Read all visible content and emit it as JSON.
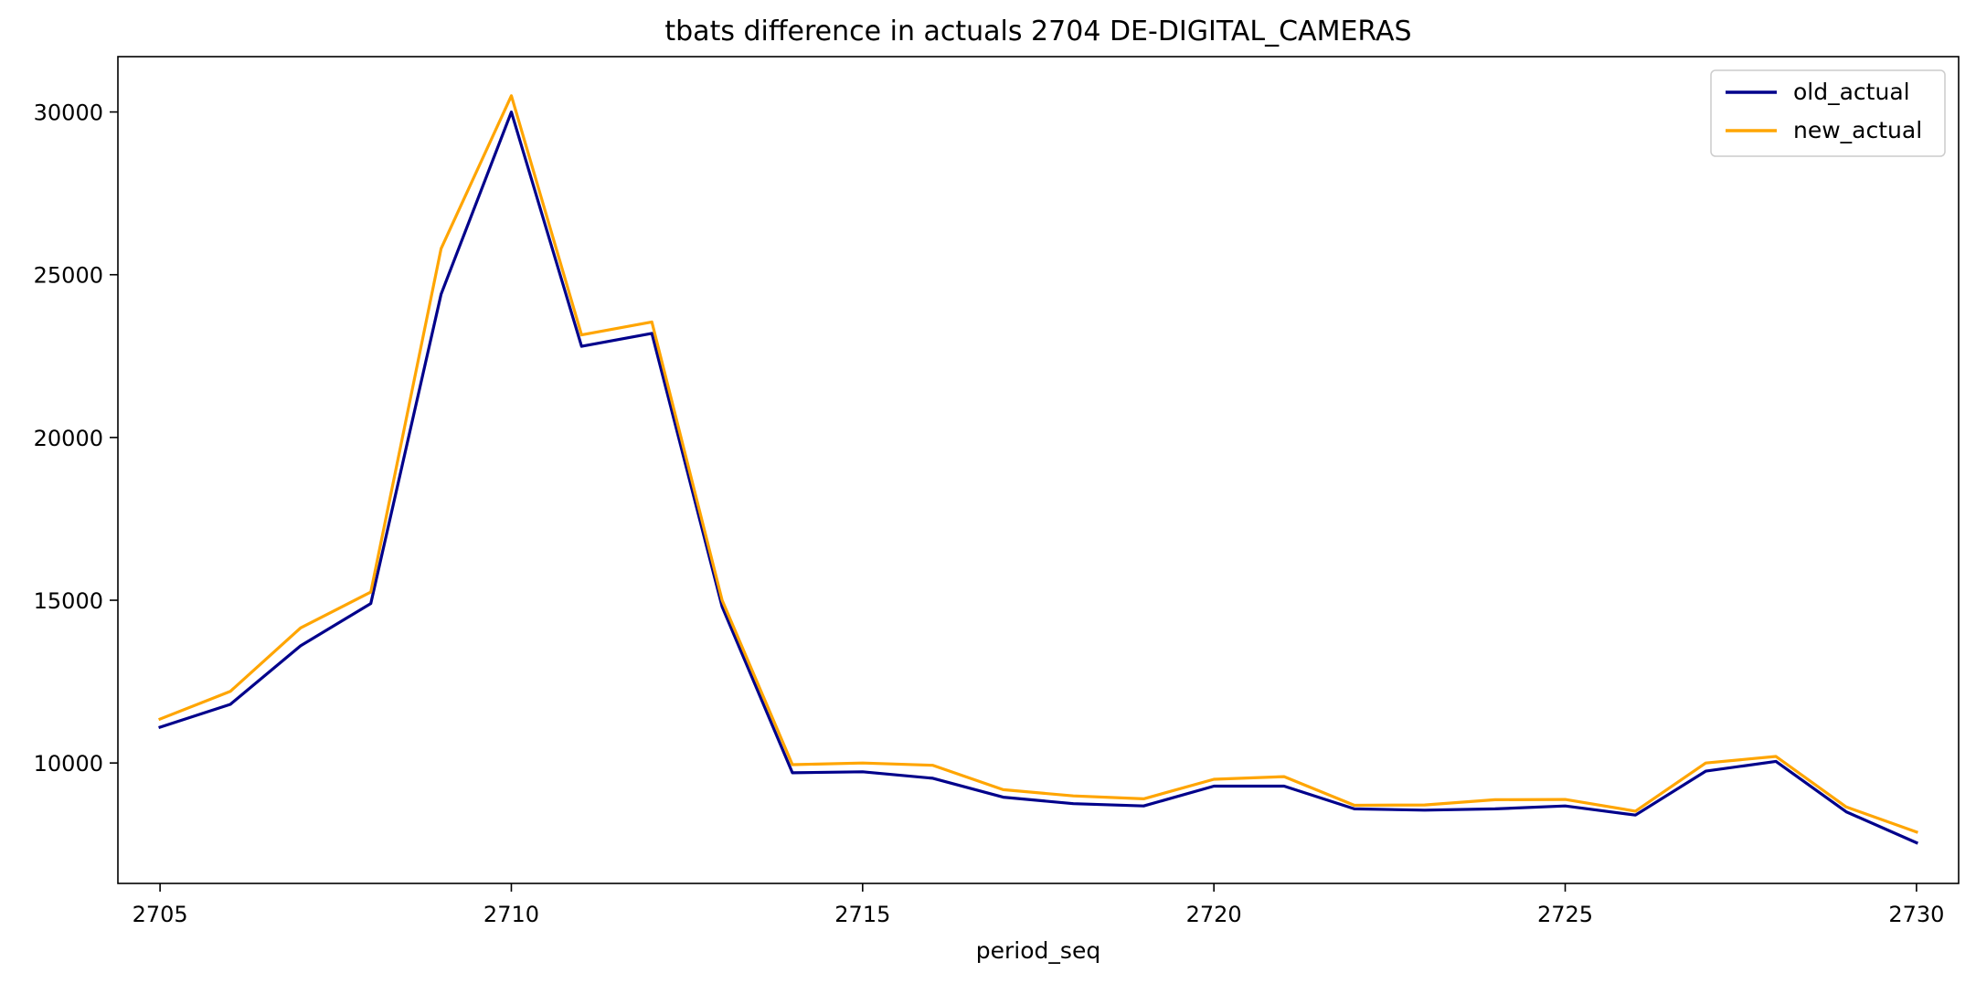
{
  "chart_data": {
    "type": "line",
    "title": "tbats difference in actuals 2704 DE-DIGITAL_CAMERAS",
    "xlabel": "period_seq",
    "ylabel": "",
    "grid": false,
    "legend_position": "top-right",
    "xlim": [
      2704.4,
      2730.6
    ],
    "ylim": [
      6300,
      31700
    ],
    "xticks": [
      2705,
      2710,
      2715,
      2720,
      2725,
      2730
    ],
    "yticks": [
      10000,
      15000,
      20000,
      25000,
      30000
    ],
    "x": [
      2705,
      2706,
      2707,
      2708,
      2709,
      2710,
      2711,
      2712,
      2713,
      2714,
      2715,
      2716,
      2717,
      2718,
      2719,
      2720,
      2721,
      2722,
      2723,
      2724,
      2725,
      2726,
      2727,
      2728,
      2729,
      2730
    ],
    "series": [
      {
        "name": "old_actual",
        "color": "#00008b",
        "values": [
          11100,
          11800,
          13600,
          14900,
          24400,
          30000,
          22800,
          23200,
          14800,
          9700,
          9730,
          9530,
          8950,
          8750,
          8680,
          9290,
          9290,
          8590,
          8550,
          8590,
          8680,
          8400,
          9750,
          10050,
          8500,
          7550
        ]
      },
      {
        "name": "new_actual",
        "color": "#ffa500",
        "values": [
          11350,
          12200,
          14150,
          15250,
          25800,
          30500,
          23150,
          23550,
          15000,
          9950,
          10000,
          9930,
          9180,
          8990,
          8900,
          9500,
          9580,
          8700,
          8710,
          8870,
          8880,
          8520,
          10000,
          10200,
          8650,
          7880
        ]
      }
    ]
  }
}
